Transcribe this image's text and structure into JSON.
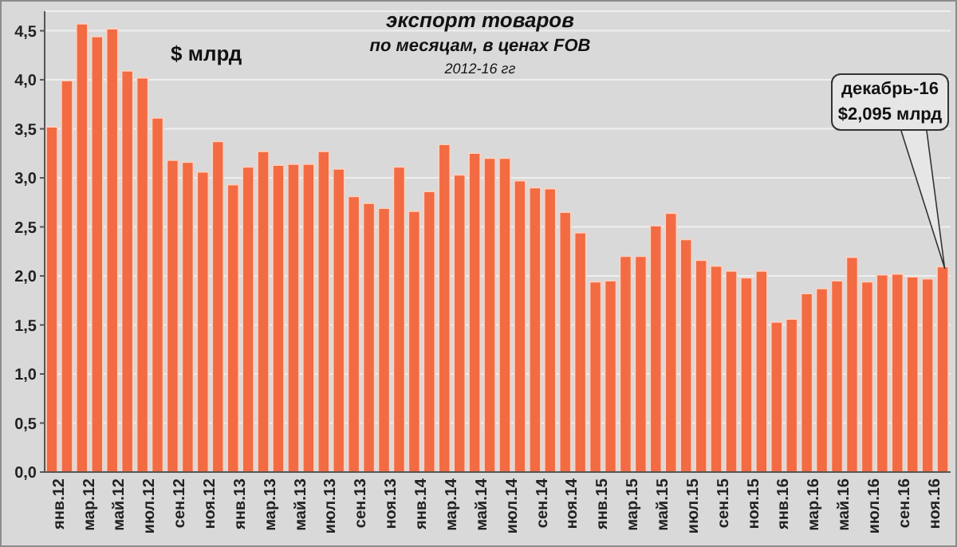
{
  "chart_data": {
    "type": "bar",
    "title": "экспорт товаров",
    "subtitle": "по месяцам, в ценах FOB\n2012-16 гг",
    "ylabel": "$ млрд",
    "categories": [
      "янв.12",
      null,
      "мар.12",
      null,
      "май.12",
      null,
      "июл.12",
      null,
      "сен.12",
      null,
      "ноя.12",
      null,
      "янв.13",
      null,
      "мар.13",
      null,
      "май.13",
      null,
      "июл.13",
      null,
      "сен.13",
      null,
      "ноя.13",
      null,
      "янв.14",
      null,
      "мар.14",
      null,
      "май.14",
      null,
      "июл.14",
      null,
      "сен.14",
      null,
      "ноя.14",
      null,
      "янв.15",
      null,
      "мар.15",
      null,
      "май.15",
      null,
      "июл.15",
      null,
      "сен.15",
      null,
      "ноя.15",
      null,
      "янв.16",
      null,
      "мар.16",
      null,
      "май.16",
      null,
      "июл.16",
      null,
      "сен.16",
      null,
      "ноя.16",
      null
    ],
    "values": [
      3.52,
      3.99,
      4.57,
      4.44,
      4.52,
      4.09,
      4.02,
      3.61,
      3.18,
      3.16,
      3.06,
      3.37,
      2.93,
      3.11,
      3.27,
      3.13,
      3.14,
      3.14,
      3.27,
      3.09,
      2.81,
      2.74,
      2.69,
      3.11,
      2.66,
      2.86,
      3.34,
      3.03,
      3.25,
      3.2,
      3.2,
      2.97,
      2.9,
      2.89,
      2.65,
      2.44,
      1.94,
      1.95,
      2.2,
      2.2,
      2.51,
      2.64,
      2.37,
      2.16,
      2.1,
      2.05,
      1.98,
      2.05,
      1.53,
      1.56,
      1.82,
      1.87,
      1.95,
      2.19,
      1.94,
      2.01,
      2.02,
      1.99,
      1.97,
      2.095
    ],
    "color": "#f26b43",
    "ylim": [
      0,
      4.7
    ],
    "yticks": [
      {
        "value": 0,
        "label": "0,0"
      },
      {
        "value": 0.5,
        "label": "0,5"
      },
      {
        "value": 1,
        "label": "1,0"
      },
      {
        "value": 1.5,
        "label": "1,5"
      },
      {
        "value": 2,
        "label": "2,0"
      },
      {
        "value": 2.5,
        "label": "2,5"
      },
      {
        "value": 3,
        "label": "3,0"
      },
      {
        "value": 3.5,
        "label": "3,5"
      },
      {
        "value": 4,
        "label": "4,0"
      },
      {
        "value": 4.5,
        "label": "4,5"
      }
    ],
    "grid": "y",
    "annotations": [
      "декабрь-16\n$2,095 млрд"
    ]
  }
}
